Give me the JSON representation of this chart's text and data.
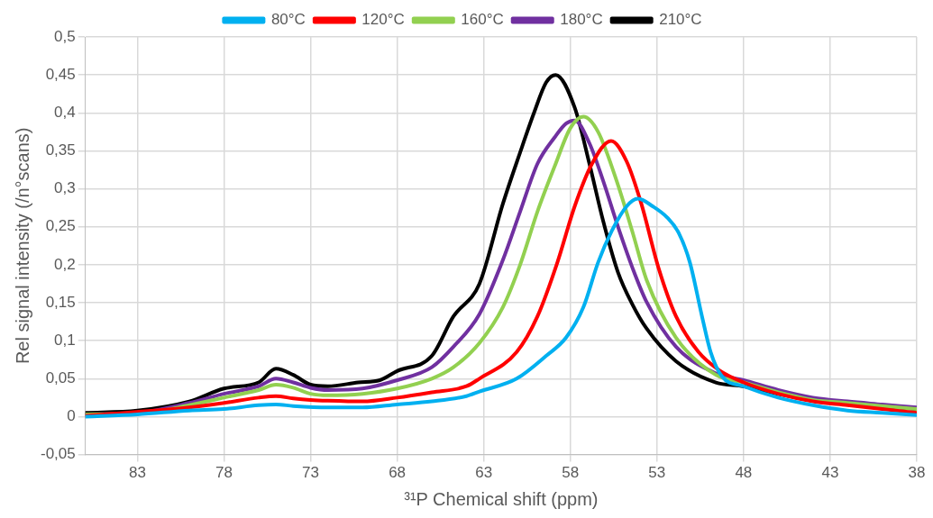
{
  "chart_data": {
    "type": "line",
    "xlabel": "³¹P Chemical shift (ppm)",
    "ylabel": "Rel signal intensity (/n°scans)",
    "xlim": [
      86,
      38
    ],
    "xticks": [
      83,
      78,
      73,
      68,
      63,
      58,
      53,
      48,
      43,
      38
    ],
    "ylim": [
      -0.05,
      0.5
    ],
    "yticks": [
      {
        "value": -0.05,
        "label": "-0,05"
      },
      0,
      {
        "value": 0.05,
        "label": "0,05"
      },
      {
        "value": 0.1,
        "label": "0,1"
      },
      {
        "value": 0.15,
        "label": "0,15"
      },
      {
        "value": 0.2,
        "label": "0,2"
      },
      {
        "value": 0.25,
        "label": "0,25"
      },
      {
        "value": 0.3,
        "label": "0,3"
      },
      {
        "value": 0.35,
        "label": "0,35"
      },
      {
        "value": 0.4,
        "label": "0,4"
      },
      {
        "value": 0.45,
        "label": "0,45"
      },
      {
        "value": 0.5,
        "label": "0,5"
      }
    ],
    "grid": true,
    "legend": "top",
    "marker": "none",
    "line_style": "solid",
    "series": [
      {
        "name": "80°C",
        "color": "#00b0f0",
        "x": [
          86,
          83,
          80,
          78,
          76,
          75,
          74,
          72,
          70,
          68,
          66,
          64,
          63.25,
          61.1,
          59.4,
          58.25,
          57.25,
          56.4,
          55.6,
          54.75,
          54.1,
          53.25,
          52.4,
          51.75,
          51.1,
          50.4,
          49.9,
          49.25,
          48,
          46,
          44,
          42,
          40,
          38
        ],
        "values": [
          0,
          0.003,
          0.008,
          0.01,
          0.015,
          0.016,
          0.014,
          0.012,
          0.012,
          0.016,
          0.02,
          0.027,
          0.033,
          0.05,
          0.08,
          0.104,
          0.144,
          0.203,
          0.245,
          0.277,
          0.287,
          0.277,
          0.262,
          0.242,
          0.203,
          0.132,
          0.085,
          0.053,
          0.04,
          0.025,
          0.015,
          0.008,
          0.005,
          0.002
        ]
      },
      {
        "name": "120°C",
        "color": "#ff0000",
        "x": [
          86,
          80,
          78,
          76,
          75,
          74,
          73,
          72,
          70,
          68,
          66,
          64,
          63.25,
          61.1,
          59.9,
          58.75,
          57.75,
          56.75,
          55.65,
          54.75,
          53.9,
          52.9,
          51.9,
          50.6,
          49.4,
          48,
          46,
          44,
          42,
          40,
          38
        ],
        "values": [
          0.001,
          0.012,
          0.018,
          0.025,
          0.027,
          0.024,
          0.022,
          0.021,
          0.02,
          0.025,
          0.032,
          0.04,
          0.05,
          0.085,
          0.132,
          0.203,
          0.277,
          0.333,
          0.363,
          0.336,
          0.28,
          0.195,
          0.132,
          0.085,
          0.061,
          0.045,
          0.03,
          0.02,
          0.015,
          0.01,
          0.005
        ]
      },
      {
        "name": "160°C",
        "color": "#92d050",
        "x": [
          86,
          83,
          80,
          78,
          76,
          75,
          74,
          73,
          72,
          70,
          68,
          66,
          64.75,
          63.25,
          61.9,
          60.9,
          59.9,
          58.9,
          58,
          57.25,
          56.4,
          55.25,
          54.4,
          53.6,
          51.9,
          49.6,
          48,
          46,
          44,
          42,
          40,
          38
        ],
        "values": [
          0.003,
          0.004,
          0.015,
          0.025,
          0.035,
          0.042,
          0.038,
          0.03,
          0.028,
          0.03,
          0.037,
          0.05,
          0.065,
          0.097,
          0.144,
          0.2,
          0.27,
          0.33,
          0.38,
          0.395,
          0.375,
          0.305,
          0.242,
          0.18,
          0.104,
          0.055,
          0.045,
          0.032,
          0.022,
          0.018,
          0.014,
          0.01
        ]
      },
      {
        "name": "180°C",
        "color": "#7030a0",
        "x": [
          86,
          83,
          80,
          78,
          76,
          75,
          74,
          73,
          72,
          70,
          68,
          66,
          64.75,
          63.25,
          61.9,
          60.9,
          59.9,
          58.9,
          58.25,
          57.75,
          56.9,
          56.1,
          55.25,
          54.4,
          53.6,
          51.9,
          49.6,
          48,
          46,
          44,
          42,
          40,
          38
        ],
        "values": [
          0.003,
          0.005,
          0.018,
          0.03,
          0.04,
          0.05,
          0.045,
          0.038,
          0.035,
          0.037,
          0.048,
          0.065,
          0.092,
          0.135,
          0.206,
          0.27,
          0.333,
          0.368,
          0.386,
          0.39,
          0.36,
          0.31,
          0.25,
          0.195,
          0.151,
          0.092,
          0.057,
          0.048,
          0.035,
          0.025,
          0.02,
          0.016,
          0.012
        ]
      },
      {
        "name": "210°C",
        "color": "#000000",
        "x": [
          86,
          83,
          80,
          78,
          76,
          75,
          74,
          73,
          72,
          70.25,
          69,
          68,
          66,
          64.75,
          63.25,
          61.9,
          60.9,
          60.1,
          59.4,
          58.85,
          57.75,
          56.9,
          56.1,
          55.25,
          54.4,
          53.6,
          51.9,
          49.6,
          48,
          46,
          44,
          42,
          40,
          38
        ],
        "values": [
          0.005,
          0.008,
          0.02,
          0.037,
          0.045,
          0.063,
          0.055,
          0.042,
          0.04,
          0.045,
          0.048,
          0.06,
          0.08,
          0.132,
          0.175,
          0.28,
          0.348,
          0.4,
          0.44,
          0.45,
          0.407,
          0.333,
          0.257,
          0.19,
          0.147,
          0.116,
          0.073,
          0.045,
          0.04,
          0.03,
          0.022,
          0.018,
          0.014,
          0.01
        ]
      }
    ]
  }
}
